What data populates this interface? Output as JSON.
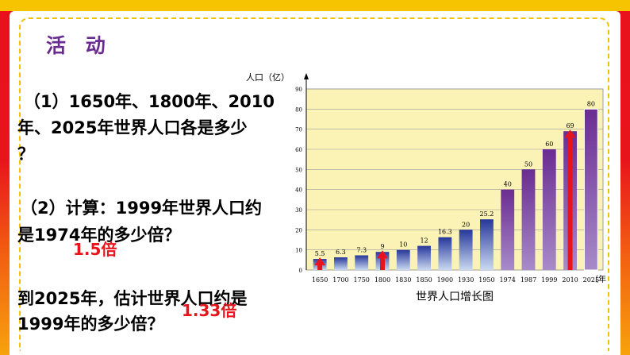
{
  "section_title": "活 动",
  "questions": {
    "q1_line1": "（1）1650年、1800年、2010",
    "q1_line2": "年、2025年世界人口各是多少",
    "q1_line3": "？",
    "q2_line1": "（2）计算：1999年世界人口约",
    "q2_line2": "是1974年的多少倍？",
    "q3_line1": "到2025年，估计世界人口约是",
    "q3_line2": "1999年的多少倍？"
  },
  "answers": {
    "a1": "1.5倍",
    "a2": "1.33倍"
  },
  "colors": {
    "bar_blue": "#2b3fa5",
    "bar_purple": "#6a2c91",
    "arrow_red": "#e8141c",
    "plot_bg": "#fbf3b5"
  },
  "chart_data": {
    "type": "bar",
    "title": "世界人口增长图",
    "ylabel": "人口（亿）",
    "xlabel": "（年）",
    "ylim": [
      0,
      90
    ],
    "yticks": [
      "0",
      "10",
      "20",
      "30",
      "40",
      "50",
      "60",
      "70",
      "80",
      "90"
    ],
    "categories": [
      "1650",
      "1700",
      "1750",
      "1800",
      "1830",
      "1850",
      "1900",
      "1930",
      "1950",
      "1974",
      "1987",
      "1999",
      "2010",
      "2025"
    ],
    "values": [
      5.5,
      6.3,
      7.3,
      9,
      10,
      12,
      16.3,
      20,
      25.2,
      40,
      50,
      60,
      69,
      80
    ],
    "value_labels": [
      "5.5",
      "6.3",
      "7.3",
      "9",
      "10",
      "12",
      "16.3",
      "20",
      "25.2",
      "40",
      "50",
      "60",
      "69",
      "80"
    ],
    "highlighted": [
      "1650",
      "1800",
      "2010"
    ],
    "grid": true
  }
}
